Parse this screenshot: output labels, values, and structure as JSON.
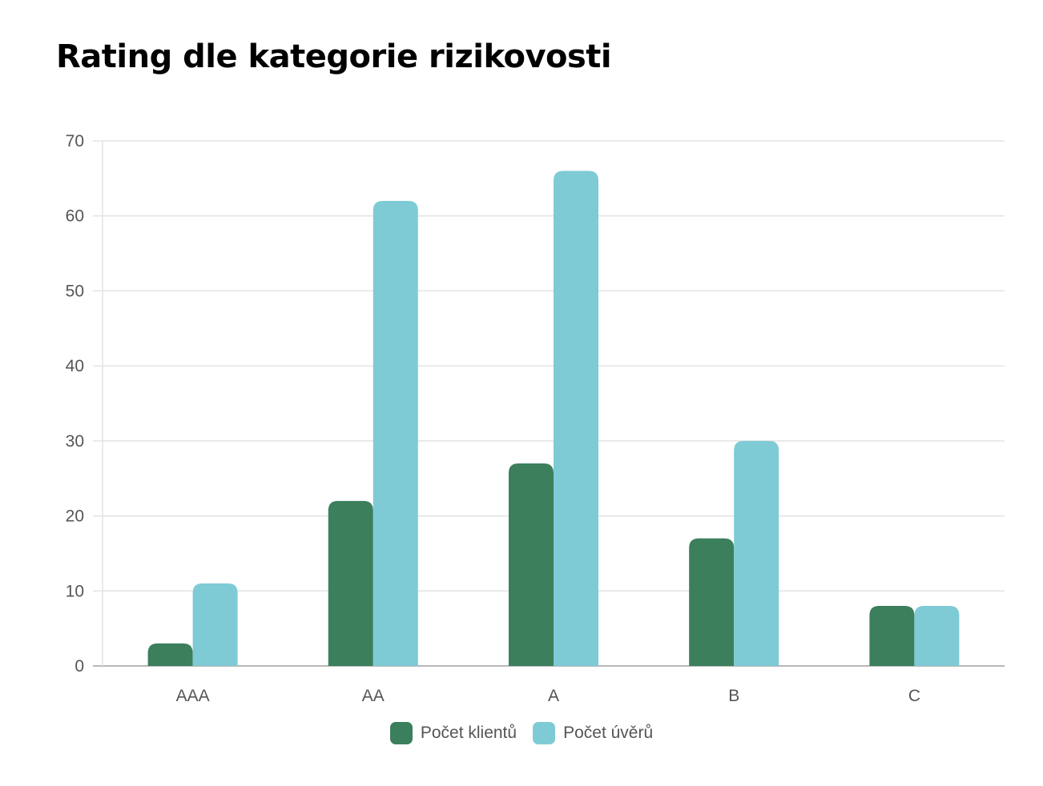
{
  "chart_data": {
    "type": "bar",
    "title": "Rating dle kategorie rizikovosti",
    "categories": [
      "AAA",
      "AA",
      "A",
      "B",
      "C"
    ],
    "series": [
      {
        "name": "Počet klientů",
        "values": [
          3,
          22,
          27,
          17,
          8
        ],
        "color": "#3b7f5c"
      },
      {
        "name": "Počet úvěrů",
        "values": [
          11,
          62,
          66,
          30,
          8
        ],
        "color": "#7ecbd6"
      }
    ],
    "xlabel": "",
    "ylabel": "",
    "ylim": [
      0,
      70
    ],
    "yticks": [
      0,
      10,
      20,
      30,
      40,
      50,
      60,
      70
    ],
    "grid": true,
    "legend": "bottom-center"
  }
}
